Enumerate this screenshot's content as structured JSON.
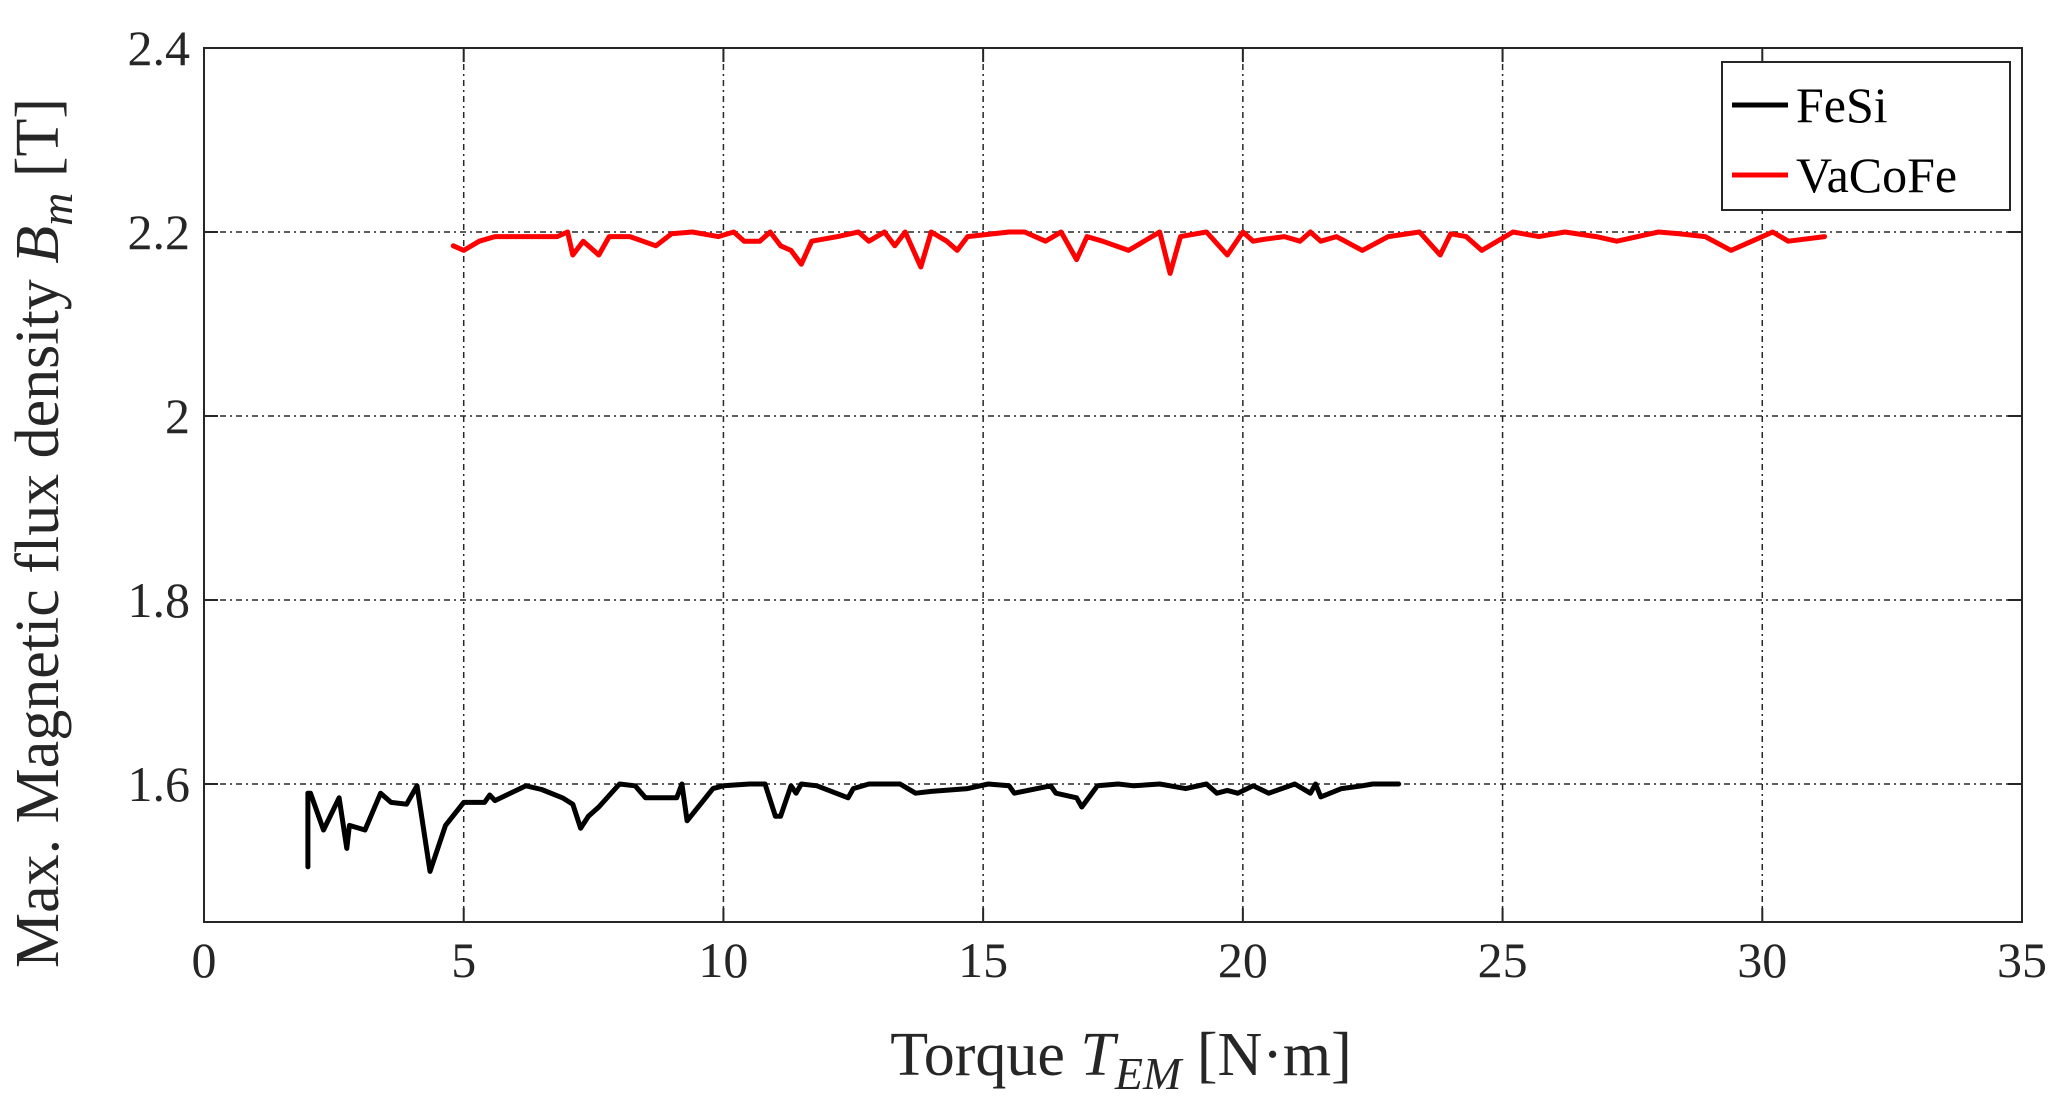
{
  "chart_data": {
    "type": "line",
    "xlabel": {
      "prefix": "Torque ",
      "symbol": "T",
      "subscript": "EM",
      "suffix": " [N·m]"
    },
    "ylabel": {
      "prefix": "Max. Magnetic flux density ",
      "symbol": "B",
      "subscript": "m",
      "suffix": " [T]"
    },
    "xlim": [
      0,
      35
    ],
    "ylim": [
      1.45,
      2.4
    ],
    "xticks": [
      0,
      5,
      10,
      15,
      20,
      25,
      30,
      35
    ],
    "xtick_labels": [
      "0",
      "5",
      "10",
      "15",
      "20",
      "25",
      "30",
      "35"
    ],
    "yticks": [
      1.6,
      1.8,
      2.0,
      2.2,
      2.4
    ],
    "ytick_labels": [
      "1.6",
      "1.8",
      "2",
      "2.2",
      "2.4"
    ],
    "grid": true,
    "legend_position": "top-right",
    "series": [
      {
        "name": "FeSi",
        "color": "#000000",
        "x": [
          2.0,
          2.0,
          2.05,
          2.3,
          2.6,
          2.75,
          2.8,
          3.1,
          3.4,
          3.6,
          3.9,
          4.1,
          4.35,
          4.65,
          5.0,
          5.4,
          5.5,
          5.6,
          6.2,
          6.5,
          6.9,
          7.1,
          7.25,
          7.4,
          7.6,
          8.0,
          8.3,
          8.5,
          8.8,
          9.1,
          9.2,
          9.3,
          9.8,
          10.0,
          10.5,
          10.8,
          11.0,
          11.1,
          11.3,
          11.4,
          11.5,
          11.8,
          12.4,
          12.5,
          12.8,
          13.4,
          13.7,
          14.0,
          14.7,
          15.1,
          15.5,
          15.6,
          16.3,
          16.4,
          16.8,
          16.9,
          17.2,
          17.6,
          17.9,
          18.4,
          18.9,
          19.3,
          19.5,
          19.7,
          19.9,
          20.2,
          20.5,
          21.0,
          21.3,
          21.4,
          21.5,
          21.9,
          22.3,
          22.5,
          22.6,
          23.0
        ],
        "y": [
          1.51,
          1.59,
          1.59,
          1.55,
          1.585,
          1.53,
          1.555,
          1.55,
          1.59,
          1.58,
          1.578,
          1.598,
          1.505,
          1.555,
          1.58,
          1.58,
          1.588,
          1.582,
          1.598,
          1.594,
          1.585,
          1.578,
          1.552,
          1.565,
          1.575,
          1.6,
          1.598,
          1.585,
          1.585,
          1.585,
          1.6,
          1.56,
          1.595,
          1.598,
          1.6,
          1.6,
          1.565,
          1.565,
          1.598,
          1.59,
          1.6,
          1.598,
          1.585,
          1.595,
          1.6,
          1.6,
          1.59,
          1.592,
          1.595,
          1.6,
          1.598,
          1.59,
          1.598,
          1.59,
          1.585,
          1.575,
          1.598,
          1.6,
          1.598,
          1.6,
          1.595,
          1.6,
          1.59,
          1.593,
          1.59,
          1.598,
          1.59,
          1.6,
          1.59,
          1.6,
          1.586,
          1.595,
          1.598,
          1.6,
          1.6,
          1.6
        ]
      },
      {
        "name": "VaCoFe",
        "color": "#ff0000",
        "x": [
          4.8,
          5.0,
          5.3,
          5.6,
          6.2,
          6.8,
          7.0,
          7.1,
          7.3,
          7.5,
          7.6,
          7.8,
          8.2,
          8.7,
          9.0,
          9.4,
          9.9,
          10.2,
          10.4,
          10.7,
          10.9,
          11.1,
          11.3,
          11.5,
          11.7,
          12.2,
          12.6,
          12.8,
          13.1,
          13.3,
          13.5,
          13.8,
          14.0,
          14.3,
          14.5,
          14.7,
          15.5,
          15.8,
          16.2,
          16.5,
          16.8,
          17.0,
          17.3,
          17.8,
          18.4,
          18.6,
          18.8,
          19.3,
          19.7,
          20.0,
          20.2,
          20.4,
          20.8,
          21.1,
          21.3,
          21.5,
          21.8,
          22.3,
          22.8,
          23.4,
          23.8,
          24.0,
          24.3,
          24.6,
          25.2,
          25.7,
          26.2,
          26.8,
          27.2,
          28.0,
          28.4,
          28.9,
          29.4,
          29.8,
          30.2,
          30.5,
          31.2
        ],
        "y": [
          2.185,
          2.18,
          2.19,
          2.195,
          2.195,
          2.195,
          2.2,
          2.175,
          2.19,
          2.18,
          2.175,
          2.195,
          2.195,
          2.185,
          2.198,
          2.2,
          2.195,
          2.2,
          2.19,
          2.19,
          2.2,
          2.185,
          2.18,
          2.165,
          2.19,
          2.195,
          2.2,
          2.19,
          2.2,
          2.185,
          2.2,
          2.162,
          2.2,
          2.19,
          2.18,
          2.195,
          2.2,
          2.2,
          2.19,
          2.2,
          2.17,
          2.195,
          2.19,
          2.18,
          2.2,
          2.155,
          2.195,
          2.2,
          2.175,
          2.2,
          2.19,
          2.192,
          2.195,
          2.19,
          2.2,
          2.19,
          2.195,
          2.18,
          2.195,
          2.2,
          2.175,
          2.198,
          2.195,
          2.18,
          2.2,
          2.195,
          2.2,
          2.195,
          2.19,
          2.2,
          2.198,
          2.195,
          2.18,
          2.19,
          2.2,
          2.19,
          2.195
        ]
      }
    ]
  }
}
